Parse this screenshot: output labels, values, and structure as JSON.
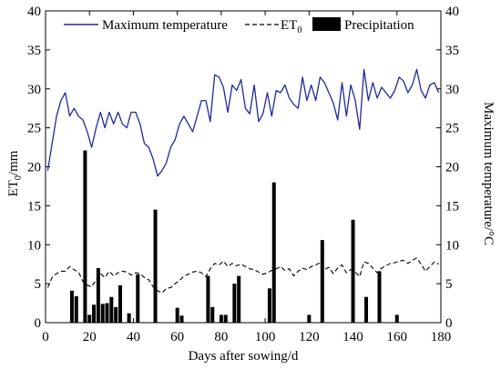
{
  "chart_data": {
    "type": "bar+line",
    "xlabel": "Days after sowing/d",
    "ylabel_left_main": "ET",
    "ylabel_left_sub": "0",
    "ylabel_left_unit": "/mm",
    "ylabel_right": "Maximum temperature/°C",
    "xlim": [
      0,
      180
    ],
    "ylim_left": [
      0,
      40
    ],
    "ylim_right": [
      0,
      40
    ],
    "x_ticks": [
      0,
      20,
      40,
      60,
      80,
      100,
      120,
      140,
      160,
      180
    ],
    "y_ticks": [
      0,
      5,
      10,
      15,
      20,
      25,
      30,
      35,
      40
    ],
    "legend": {
      "placement": "top",
      "tmax_label": "Maximum temperature",
      "et0_main": "ET",
      "et0_sub": "0",
      "precip_label": "Precipitation"
    },
    "colors": {
      "tmax": "#1f2a9c",
      "et0": "#000000",
      "precip": "#000000"
    },
    "series": [
      {
        "name": "Maximum temperature",
        "axis": "right",
        "style": "solid",
        "x": [
          1,
          3,
          5,
          7,
          9,
          11,
          13,
          15,
          17,
          19,
          21,
          23,
          25,
          27,
          29,
          31,
          33,
          35,
          37,
          39,
          41,
          43,
          45,
          47,
          49,
          51,
          53,
          55,
          57,
          59,
          61,
          63,
          65,
          67,
          69,
          71,
          73,
          75,
          77,
          79,
          81,
          83,
          85,
          87,
          89,
          91,
          93,
          95,
          97,
          99,
          101,
          103,
          105,
          107,
          109,
          111,
          113,
          115,
          117,
          119,
          121,
          123,
          125,
          127,
          129,
          131,
          133,
          135,
          137,
          139,
          141,
          143,
          145,
          147,
          149,
          151,
          153,
          155,
          157,
          159,
          161,
          163,
          165,
          167,
          169,
          171,
          173,
          175,
          177,
          179
        ],
        "values": [
          19.5,
          23,
          26.5,
          28.5,
          29.5,
          26.5,
          27.5,
          26.5,
          26,
          24.5,
          22.5,
          25,
          27,
          25,
          27,
          25.5,
          27,
          25.5,
          25,
          27,
          27,
          25.5,
          23,
          22.5,
          21,
          18.8,
          19.5,
          20.5,
          22.5,
          23.5,
          25.5,
          26.5,
          25.5,
          24.5,
          26.5,
          28.5,
          28.5,
          25.8,
          31.8,
          31.5,
          30.2,
          27,
          30.5,
          29.8,
          31.2,
          27.5,
          26.8,
          30.5,
          25.8,
          26.8,
          29.5,
          26.5,
          29.8,
          29.5,
          30.5,
          28.8,
          28,
          27.5,
          31.5,
          28.5,
          30.5,
          28.5,
          31.5,
          30.8,
          29.5,
          28.2,
          26,
          30.8,
          26.5,
          30.5,
          28.5,
          24.8,
          32.5,
          28.5,
          30.8,
          28.8,
          30.2,
          29.5,
          28.8,
          29.8,
          31.5,
          31,
          29.5,
          30.5,
          32.5,
          29.8,
          28.8,
          30.5,
          30.8,
          29.5
        ]
      },
      {
        "name": "ET0",
        "axis": "left",
        "style": "dashed",
        "x": [
          1,
          3,
          5,
          7,
          9,
          11,
          13,
          15,
          17,
          19,
          21,
          23,
          25,
          27,
          29,
          31,
          33,
          35,
          37,
          39,
          41,
          43,
          45,
          47,
          49,
          51,
          53,
          55,
          57,
          59,
          61,
          63,
          65,
          67,
          69,
          71,
          73,
          75,
          77,
          79,
          81,
          83,
          85,
          87,
          89,
          91,
          93,
          95,
          97,
          99,
          101,
          103,
          105,
          107,
          109,
          111,
          113,
          115,
          117,
          119,
          121,
          123,
          125,
          127,
          129,
          131,
          133,
          135,
          137,
          139,
          141,
          143,
          145,
          147,
          149,
          151,
          153,
          155,
          157,
          159,
          161,
          163,
          165,
          167,
          169,
          171,
          173,
          175,
          177,
          179
        ],
        "values": [
          4.5,
          5.8,
          6.3,
          6.6,
          6.6,
          7.2,
          6.8,
          6.5,
          5.3,
          4.8,
          4.6,
          5.5,
          6.3,
          5.8,
          6.6,
          6.0,
          6.4,
          6.6,
          6.5,
          6.1,
          6.4,
          6.3,
          5.8,
          5.5,
          4.6,
          4.1,
          3.8,
          4.4,
          4.5,
          5.0,
          5.4,
          6.0,
          6.2,
          6.5,
          6.6,
          6.4,
          5.9,
          6.9,
          7.6,
          7.4,
          7.9,
          7.2,
          7.6,
          7.3,
          7.5,
          7.2,
          6.9,
          6.8,
          6.5,
          6.2,
          6.4,
          6.7,
          6.9,
          7.2,
          6.7,
          6.9,
          6.0,
          6.6,
          7.0,
          6.8,
          7.2,
          7.4,
          7.7,
          6.8,
          7.1,
          6.3,
          7.0,
          7.4,
          6.4,
          6.8,
          6.5,
          5.9,
          7.8,
          7.6,
          7.0,
          6.4,
          7.0,
          7.3,
          7.6,
          7.7,
          7.9,
          8.0,
          7.6,
          8.0,
          8.3,
          7.5,
          6.6,
          7.2,
          7.8,
          7.5
        ]
      },
      {
        "name": "Precipitation",
        "axis": "left",
        "style": "bar",
        "x": [
          12,
          14,
          18,
          20,
          22,
          24,
          26,
          28,
          30,
          32,
          34,
          38,
          42,
          50,
          60,
          62,
          74,
          76,
          80,
          82,
          86,
          88,
          102,
          104,
          120,
          126,
          140,
          146,
          152,
          160
        ],
        "values": [
          4.1,
          3.4,
          22.1,
          1.0,
          2.3,
          7.0,
          2.4,
          2.5,
          3.3,
          2.0,
          4.8,
          1.2,
          6.2,
          14.5,
          1.9,
          0.9,
          6.0,
          2.0,
          1.0,
          1.0,
          5.0,
          6.0,
          4.4,
          18.0,
          1.0,
          10.6,
          13.2,
          3.3,
          6.6,
          1.0
        ]
      }
    ]
  }
}
